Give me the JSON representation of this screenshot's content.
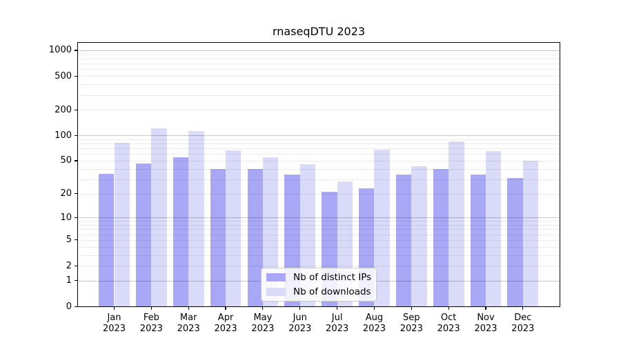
{
  "chart_data": {
    "type": "bar",
    "title": "rnaseqDTU 2023",
    "categories": [
      "Jan",
      "Feb",
      "Mar",
      "Apr",
      "May",
      "Jun",
      "Jul",
      "Aug",
      "Sep",
      "Oct",
      "Nov",
      "Dec"
    ],
    "category_year": "2023",
    "series": [
      {
        "name": "Nb of distinct IPs",
        "color": "#a8a8f7",
        "values": [
          35,
          46,
          55,
          40,
          40,
          34,
          21,
          23,
          34,
          40,
          34,
          31
        ]
      },
      {
        "name": "Nb of downloads",
        "color": "#dadaf9",
        "values": [
          81,
          122,
          112,
          66,
          55,
          45,
          28,
          67,
          43,
          84,
          65,
          50
        ]
      }
    ],
    "xlabel": "",
    "ylabel": "",
    "y_scale": "log1p",
    "y_ticks": [
      0,
      1,
      2,
      5,
      10,
      20,
      50,
      100,
      200,
      500,
      1000
    ],
    "y_major_gridlines": [
      1,
      10,
      100,
      1000
    ],
    "ylim": [
      0,
      1230
    ],
    "grid": true,
    "legend_position": "lower-center"
  }
}
